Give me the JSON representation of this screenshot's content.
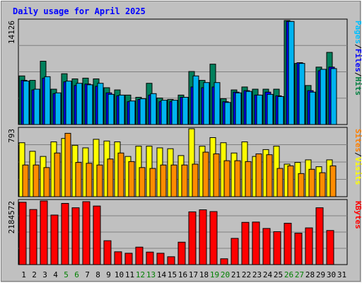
{
  "chart_data": {
    "type": "bar",
    "title": "Daily usage for April 2025",
    "x": [
      "1",
      "2",
      "3",
      "4",
      "5",
      "6",
      "7",
      "8",
      "9",
      "10",
      "11",
      "12",
      "13",
      "14",
      "15",
      "16",
      "17",
      "18",
      "19",
      "20",
      "21",
      "22",
      "23",
      "24",
      "25",
      "26",
      "27",
      "28",
      "29",
      "30",
      "31"
    ],
    "weekend_days": [
      "5",
      "6",
      "12",
      "13",
      "19",
      "20",
      "26",
      "27"
    ],
    "panels": [
      {
        "name": "hits-files-pages",
        "ymax_label": "14126",
        "ymax": 14126,
        "legend": [
          {
            "text": "Pages",
            "color": "#00c0ff"
          },
          {
            "text": "/",
            "color": "#000000"
          },
          {
            "text": "Files",
            "color": "#0000ff"
          },
          {
            "text": "/",
            "color": "#000000"
          },
          {
            "text": "Hits",
            "color": "#008040"
          }
        ],
        "series": [
          {
            "name": "Hits",
            "color": "#00805c",
            "values": [
              6600,
              6000,
              8600,
              4800,
              6900,
              6200,
              6300,
              6200,
              5000,
              4700,
              4000,
              3700,
              5600,
              3600,
              3400,
              4000,
              7200,
              6000,
              8200,
              3500,
              4700,
              5100,
              4800,
              4800,
              4800,
              14126,
              8300,
              5300,
              7800,
              9800,
              null
            ]
          },
          {
            "name": "Files",
            "color": "#0000ff",
            "values": [
              6000,
              4700,
              6300,
              4200,
              5800,
              5300,
              5500,
              5200,
              4300,
              3900,
              3100,
              3400,
              4000,
              3100,
              3100,
              3700,
              5100,
              5000,
              5100,
              3100,
              4400,
              4600,
              4000,
              4400,
              3900,
              14000,
              8400,
              4600,
              7300,
              7800,
              null
            ]
          },
          {
            "name": "Pages",
            "color": "#00b4f0",
            "values": [
              5900,
              4800,
              6500,
              4300,
              5900,
              5600,
              5400,
              5600,
              4100,
              4000,
              3200,
              3500,
              4200,
              3300,
              3300,
              3700,
              6600,
              5700,
              5700,
              3000,
              4300,
              4500,
              4000,
              4100,
              3800,
              14000,
              8300,
              4400,
              7500,
              7600,
              null
            ]
          }
        ]
      },
      {
        "name": "visits-sites",
        "ymax_label": "793",
        "ymax": 793,
        "legend": [
          {
            "text": "Sites",
            "color": "#ff8000"
          },
          {
            "text": "/",
            "color": "#000000"
          },
          {
            "text": "Visits",
            "color": "#ffff00"
          }
        ],
        "series": [
          {
            "name": "Visits",
            "color": "#ffff00",
            "values": [
              630,
              530,
              470,
              640,
              680,
              600,
              570,
              670,
              650,
              640,
              470,
              590,
              590,
              570,
              560,
              480,
              793,
              590,
              690,
              630,
              510,
              640,
              470,
              550,
              590,
              380,
              400,
              430,
              350,
              430,
              null
            ]
          },
          {
            "name": "Sites",
            "color": "#ff8c00",
            "values": [
              370,
              370,
              340,
              510,
              740,
              400,
              390,
              370,
              440,
              510,
              410,
              340,
              330,
              370,
              370,
              370,
              380,
              520,
              500,
              420,
              420,
              410,
              500,
              490,
              330,
              360,
              270,
              320,
              280,
              360,
              null
            ]
          }
        ]
      },
      {
        "name": "kbytes",
        "ymax_label": "2184572",
        "ymax": 2184572,
        "legend": [
          {
            "text": "KBytes",
            "color": "#ff0000"
          }
        ],
        "series": [
          {
            "name": "KBytes",
            "color": "#ff0000",
            "values": [
              2140000,
              1890000,
              2184572,
              1700000,
              2100000,
              1950000,
              2160000,
              2010000,
              820000,
              440000,
              390000,
              600000,
              430000,
              390000,
              270000,
              770000,
              1810000,
              1880000,
              1820000,
              200000,
              900000,
              1450000,
              1460000,
              1240000,
              1130000,
              1420000,
              1080000,
              1260000,
              1950000,
              1170000,
              null
            ]
          }
        ]
      }
    ]
  }
}
